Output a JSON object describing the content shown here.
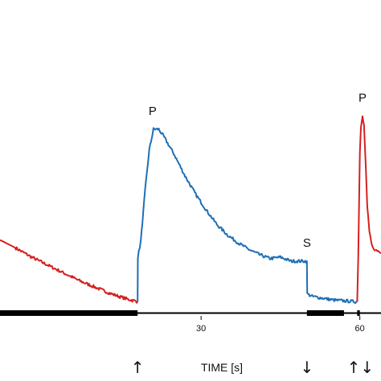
{
  "chart_data": {
    "type": "line",
    "xlabel": "TIME [s]",
    "ylabel": "",
    "xlim": [
      -8,
      64
    ],
    "ylim": [
      0,
      1
    ],
    "x_ticks": [
      30,
      60
    ],
    "grid": false,
    "legend": "none",
    "series": [
      {
        "color": "#d62020",
        "points": [
          [
            -8,
            0.266
          ],
          [
            -5,
            0.235
          ],
          [
            -2,
            0.2
          ],
          [
            1,
            0.17
          ],
          [
            4,
            0.14
          ],
          [
            7,
            0.11
          ],
          [
            10,
            0.085
          ],
          [
            13,
            0.06
          ],
          [
            16,
            0.04
          ],
          [
            18,
            0.03
          ]
        ]
      },
      {
        "color": "#1f6fb5",
        "points": [
          [
            18,
            0.03
          ],
          [
            18.05,
            0.2
          ],
          [
            18.6,
            0.26
          ],
          [
            19.4,
            0.45
          ],
          [
            20.2,
            0.61
          ],
          [
            21,
            0.69
          ],
          [
            22,
            0.69
          ],
          [
            23,
            0.66
          ],
          [
            25,
            0.59
          ],
          [
            27,
            0.51
          ],
          [
            29,
            0.44
          ],
          [
            31,
            0.38
          ],
          [
            33,
            0.325
          ],
          [
            35,
            0.285
          ],
          [
            37,
            0.255
          ],
          [
            39,
            0.23
          ],
          [
            41,
            0.21
          ],
          [
            43,
            0.195
          ],
          [
            45,
            0.2
          ],
          [
            47,
            0.185
          ],
          [
            49,
            0.185
          ],
          [
            50,
            0.185
          ],
          [
            50.05,
            0.06
          ],
          [
            51,
            0.05
          ],
          [
            53,
            0.043
          ],
          [
            55,
            0.036
          ],
          [
            57,
            0.033
          ],
          [
            59,
            0.03
          ],
          [
            59.5,
            0.03
          ]
        ]
      },
      {
        "color": "#d62020",
        "points": [
          [
            59.5,
            0.03
          ],
          [
            59.7,
            0.2
          ],
          [
            60,
            0.6
          ],
          [
            60.2,
            0.7
          ],
          [
            60.5,
            0.74
          ],
          [
            60.8,
            0.71
          ],
          [
            61.1,
            0.56
          ],
          [
            61.4,
            0.4
          ],
          [
            61.8,
            0.3
          ],
          [
            62.2,
            0.25
          ],
          [
            62.6,
            0.23
          ],
          [
            63.3,
            0.22
          ],
          [
            64,
            0.215
          ]
        ]
      }
    ],
    "annotations": [
      {
        "text": "P",
        "x": 21,
        "y": 0.69
      },
      {
        "text": "S",
        "x": 50,
        "y": 0.185
      },
      {
        "text": "P",
        "x": 60.5,
        "y": 0.74
      }
    ],
    "stimulus_bars": [
      [
        -8,
        18
      ],
      [
        50,
        57
      ],
      [
        59.5,
        60
      ]
    ],
    "arrows": [
      {
        "x": 18,
        "glyph": "↑"
      },
      {
        "x": 50,
        "glyph": "↓"
      },
      {
        "x": 59.5,
        "glyph": "↑↓"
      }
    ]
  }
}
